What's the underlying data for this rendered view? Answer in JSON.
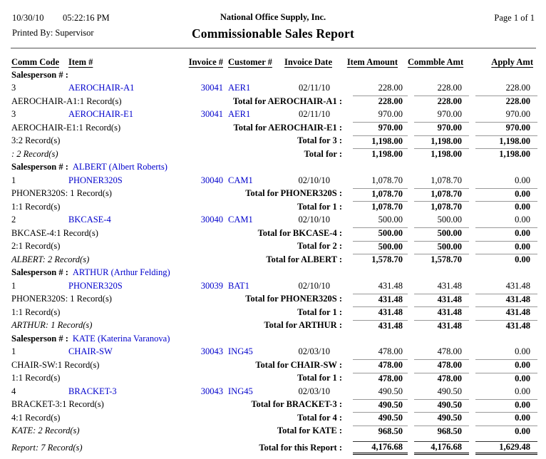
{
  "header": {
    "date": "10/30/10",
    "time": "05:22:16 PM",
    "company": "National Office Supply, Inc.",
    "page_label": "Page 1 of 1",
    "printed_by": "Printed By: Supervisor",
    "title": "Commissionable Sales Report"
  },
  "columns": [
    "Comm Code",
    "Item #",
    "Invoice #",
    "Customer #",
    "Invoice Date",
    "Item Amount",
    "Commble Amt",
    "Apply Amt"
  ],
  "salesperson_label": "Salesperson # :",
  "colors": {
    "link": "#0000CC",
    "rule": "#999999",
    "text": "#000000"
  },
  "rows": [
    {
      "type": "salesperson",
      "name": ""
    },
    {
      "type": "detail",
      "comm": "3",
      "item": "AEROCHAIR-A1",
      "invoice": "30041",
      "customer": "AER1",
      "date": "02/11/10",
      "item_amount": "228.00",
      "commble_amt": "228.00",
      "apply_amt": "228.00"
    },
    {
      "type": "total",
      "left": "AEROCHAIR-A1:1 Record(s)",
      "italic": false,
      "label": "Total for AEROCHAIR-A1 :",
      "item_amount": "228.00",
      "commble_amt": "228.00",
      "apply_amt": "228.00"
    },
    {
      "type": "detail",
      "comm": "3",
      "item": "AEROCHAIR-E1",
      "invoice": "30041",
      "customer": "AER1",
      "date": "02/11/10",
      "item_amount": "970.00",
      "commble_amt": "970.00",
      "apply_amt": "970.00"
    },
    {
      "type": "total",
      "left": "AEROCHAIR-E1:1 Record(s)",
      "italic": false,
      "label": "Total for AEROCHAIR-E1 :",
      "item_amount": "970.00",
      "commble_amt": "970.00",
      "apply_amt": "970.00"
    },
    {
      "type": "total",
      "left": "3:2 Record(s)",
      "italic": false,
      "label": "Total for 3 :",
      "item_amount": "1,198.00",
      "commble_amt": "1,198.00",
      "apply_amt": "1,198.00"
    },
    {
      "type": "total",
      "left": ": 2 Record(s)",
      "italic": true,
      "label": "Total for :",
      "item_amount": "1,198.00",
      "commble_amt": "1,198.00",
      "apply_amt": "1,198.00"
    },
    {
      "type": "salesperson",
      "name": "ALBERT (Albert Roberts)"
    },
    {
      "type": "detail",
      "comm": "1",
      "item": "PHONER320S",
      "invoice": "30040",
      "customer": "CAM1",
      "date": "02/10/10",
      "item_amount": "1,078.70",
      "commble_amt": "1,078.70",
      "apply_amt": "0.00"
    },
    {
      "type": "total",
      "left": "PHONER320S: 1 Record(s)",
      "italic": false,
      "label": "Total for PHONER320S :",
      "item_amount": "1,078.70",
      "commble_amt": "1,078.70",
      "apply_amt": "0.00"
    },
    {
      "type": "total",
      "left": "1:1 Record(s)",
      "italic": false,
      "label": "Total for 1 :",
      "item_amount": "1,078.70",
      "commble_amt": "1,078.70",
      "apply_amt": "0.00"
    },
    {
      "type": "detail",
      "comm": "2",
      "item": "BKCASE-4",
      "invoice": "30040",
      "customer": "CAM1",
      "date": "02/10/10",
      "item_amount": "500.00",
      "commble_amt": "500.00",
      "apply_amt": "0.00"
    },
    {
      "type": "total",
      "left": "BKCASE-4:1 Record(s)",
      "italic": false,
      "label": "Total for BKCASE-4 :",
      "item_amount": "500.00",
      "commble_amt": "500.00",
      "apply_amt": "0.00"
    },
    {
      "type": "total",
      "left": "2:1 Record(s)",
      "italic": false,
      "label": "Total for 2 :",
      "item_amount": "500.00",
      "commble_amt": "500.00",
      "apply_amt": "0.00"
    },
    {
      "type": "total",
      "left": "ALBERT: 2 Record(s)",
      "italic": true,
      "label": "Total for ALBERT :",
      "item_amount": "1,578.70",
      "commble_amt": "1,578.70",
      "apply_amt": "0.00"
    },
    {
      "type": "salesperson",
      "name": "ARTHUR (Arthur Felding)"
    },
    {
      "type": "detail",
      "comm": "1",
      "item": "PHONER320S",
      "invoice": "30039",
      "customer": "BAT1",
      "date": "02/10/10",
      "item_amount": "431.48",
      "commble_amt": "431.48",
      "apply_amt": "431.48"
    },
    {
      "type": "total",
      "left": "PHONER320S: 1 Record(s)",
      "italic": false,
      "label": "Total for PHONER320S :",
      "item_amount": "431.48",
      "commble_amt": "431.48",
      "apply_amt": "431.48"
    },
    {
      "type": "total",
      "left": "1:1 Record(s)",
      "italic": false,
      "label": "Total for 1 :",
      "item_amount": "431.48",
      "commble_amt": "431.48",
      "apply_amt": "431.48"
    },
    {
      "type": "total",
      "left": "ARTHUR: 1 Record(s)",
      "italic": true,
      "label": "Total for ARTHUR :",
      "item_amount": "431.48",
      "commble_amt": "431.48",
      "apply_amt": "431.48"
    },
    {
      "type": "salesperson",
      "name": "KATE (Katerina Varanova)"
    },
    {
      "type": "detail",
      "comm": "1",
      "item": "CHAIR-SW",
      "invoice": "30043",
      "customer": "ING45",
      "date": "02/03/10",
      "item_amount": "478.00",
      "commble_amt": "478.00",
      "apply_amt": "0.00"
    },
    {
      "type": "total",
      "left": "CHAIR-SW:1 Record(s)",
      "italic": false,
      "label": "Total for CHAIR-SW :",
      "item_amount": "478.00",
      "commble_amt": "478.00",
      "apply_amt": "0.00"
    },
    {
      "type": "total",
      "left": "1:1 Record(s)",
      "italic": false,
      "label": "Total for 1 :",
      "item_amount": "478.00",
      "commble_amt": "478.00",
      "apply_amt": "0.00"
    },
    {
      "type": "detail",
      "comm": "4",
      "item": "BRACKET-3",
      "invoice": "30043",
      "customer": "ING45",
      "date": "02/03/10",
      "item_amount": "490.50",
      "commble_amt": "490.50",
      "apply_amt": "0.00"
    },
    {
      "type": "total",
      "left": "BRACKET-3:1 Record(s)",
      "italic": false,
      "label": "Total for BRACKET-3 :",
      "item_amount": "490.50",
      "commble_amt": "490.50",
      "apply_amt": "0.00"
    },
    {
      "type": "total",
      "left": "4:1 Record(s)",
      "italic": false,
      "label": "Total for 4 :",
      "item_amount": "490.50",
      "commble_amt": "490.50",
      "apply_amt": "0.00"
    },
    {
      "type": "total",
      "left": "KATE: 2 Record(s)",
      "italic": true,
      "label": "Total for KATE :",
      "item_amount": "968.50",
      "commble_amt": "968.50",
      "apply_amt": "0.00"
    },
    {
      "type": "report_total",
      "left": "Report: 7 Record(s)",
      "italic": true,
      "label": "Total for this Report :",
      "item_amount": "4,176.68",
      "commble_amt": "4,176.68",
      "apply_amt": "1,629.48"
    }
  ]
}
